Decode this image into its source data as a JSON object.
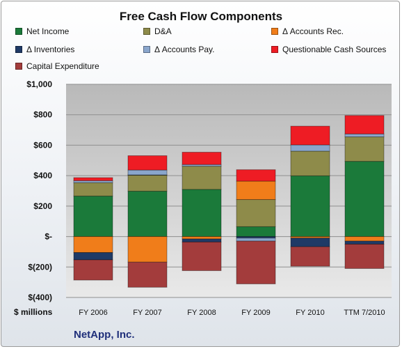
{
  "chart_data": {
    "type": "bar",
    "title": "Free Cash Flow Components",
    "unit_label": "$ millions",
    "company": "NetApp, Inc.",
    "categories": [
      "FY 2006",
      "FY 2007",
      "FY 2008",
      "FY 2009",
      "FY 2010",
      "TTM 7/2010"
    ],
    "ylim": [
      -400,
      1000
    ],
    "yticks": [
      -400,
      -200,
      0,
      200,
      400,
      600,
      800,
      1000
    ],
    "ytick_labels": [
      "$(400)",
      "$(200)",
      "$-",
      "$200",
      "$400",
      "$600",
      "$800",
      "$1,000"
    ],
    "grid": true,
    "legend_position": "top",
    "series": [
      {
        "name": "Net Income",
        "color": "#1b7a3a",
        "values": [
          266,
          298,
          310,
          65,
          399,
          494
        ]
      },
      {
        "name": "D&A",
        "color": "#8e8b4a",
        "values": [
          88,
          106,
          152,
          178,
          162,
          161
        ]
      },
      {
        "name": "Δ Accounts Rec.",
        "color": "#f07d1a",
        "values": [
          -105,
          -168,
          -16,
          121,
          -10,
          -30
        ]
      },
      {
        "name": "Δ Inventories",
        "color": "#1f3a66",
        "values": [
          -48,
          1,
          -20,
          -10,
          -57,
          -20
        ]
      },
      {
        "name": "Δ Accounts Pay.",
        "color": "#8aa6cc",
        "values": [
          13,
          32,
          11,
          -20,
          41,
          19
        ]
      },
      {
        "name": "Questionable Cash Sources",
        "color": "#ee1c24",
        "values": [
          20,
          94,
          81,
          75,
          123,
          121
        ]
      },
      {
        "name": "Capital Expenditure",
        "color": "#a33c3c",
        "values": [
          -133,
          -165,
          -188,
          -281,
          -128,
          -160
        ]
      }
    ]
  }
}
